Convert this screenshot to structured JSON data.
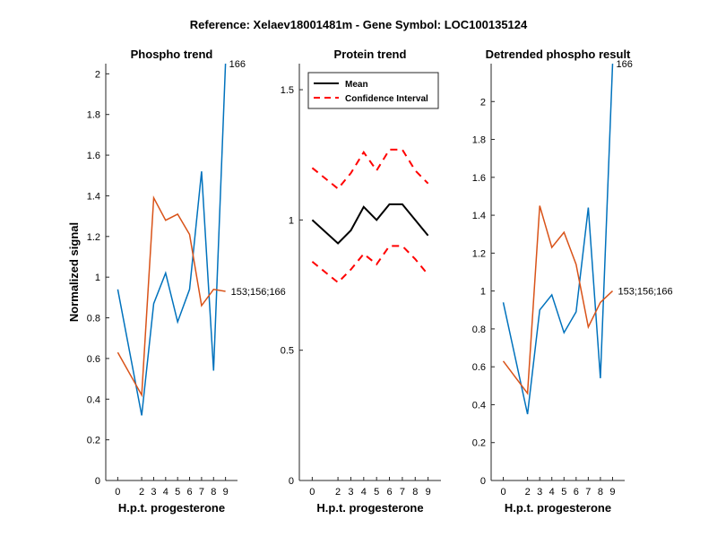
{
  "figure_title": "Reference:  Xelaev18001481m - Gene Symbol:  LOC100135124",
  "colors": {
    "blue": "#0072BD",
    "orange": "#D95319",
    "black": "#000000",
    "red": "#FF0000"
  },
  "chart_data": [
    {
      "type": "line",
      "title": "Phospho trend",
      "xlabel": "H.p.t. progesterone",
      "ylabel": "Normalized signal",
      "x": [
        0,
        2,
        3,
        4,
        5,
        6,
        7,
        8,
        9
      ],
      "xlim": [
        -1,
        10
      ],
      "ylim": [
        0,
        2.05
      ],
      "yticks": [
        0,
        0.2,
        0.4,
        0.6,
        0.8,
        1,
        1.2,
        1.4,
        1.6,
        1.8,
        2
      ],
      "ytick_labels": [
        "0",
        "0.2",
        "0.4",
        "0.6",
        "0.8",
        "1",
        "1.2",
        "1.4",
        "1.6",
        "1.8",
        "2"
      ],
      "xtick_labels": [
        "0",
        "2",
        "3",
        "4",
        "5",
        "6",
        "7",
        "8",
        "9"
      ],
      "series": [
        {
          "name": "166",
          "color": "#0072BD",
          "values": [
            0.94,
            0.32,
            0.87,
            1.02,
            0.78,
            0.94,
            1.52,
            0.54,
            2.05
          ],
          "label_at": 8,
          "label_side": "above"
        },
        {
          "name": "153;156;166",
          "color": "#D95319",
          "values": [
            0.63,
            0.42,
            1.39,
            1.28,
            1.31,
            1.21,
            0.86,
            0.94,
            0.93
          ],
          "label_at": 8,
          "label_side": "right"
        }
      ]
    },
    {
      "type": "line",
      "title": "Protein trend",
      "xlabel": "H.p.t. progesterone",
      "ylabel": "",
      "x": [
        0,
        2,
        3,
        4,
        5,
        6,
        7,
        8,
        9
      ],
      "xlim": [
        -1,
        10
      ],
      "ylim": [
        0,
        1.6
      ],
      "yticks": [
        0,
        0.5,
        1,
        1.5
      ],
      "ytick_labels": [
        "0",
        "0.5",
        "1",
        "1.5"
      ],
      "xtick_labels": [
        "0",
        "2",
        "3",
        "4",
        "5",
        "6",
        "7",
        "8",
        "9"
      ],
      "legend": {
        "location": "top-left",
        "entries": [
          "Mean",
          "Confidence Interval"
        ]
      },
      "series": [
        {
          "name": "Mean",
          "color": "#000000",
          "style": "solid",
          "values": [
            1.0,
            0.91,
            0.96,
            1.05,
            1.0,
            1.06,
            1.06,
            1.0,
            0.94
          ]
        },
        {
          "name": "Confidence Interval",
          "color": "#FF0000",
          "style": "dashed",
          "values": [
            1.2,
            1.12,
            1.18,
            1.26,
            1.19,
            1.27,
            1.27,
            1.19,
            1.14
          ]
        },
        {
          "name": "Confidence Interval (lower)",
          "color": "#FF0000",
          "style": "dashed",
          "values": [
            0.84,
            0.76,
            0.81,
            0.87,
            0.83,
            0.9,
            0.9,
            0.85,
            0.79
          ]
        }
      ]
    },
    {
      "type": "line",
      "title": "Detrended phospho result",
      "xlabel": "H.p.t. progesterone",
      "ylabel": "",
      "x": [
        0,
        2,
        3,
        4,
        5,
        6,
        7,
        8,
        9
      ],
      "xlim": [
        -1,
        10
      ],
      "ylim": [
        0,
        2.2
      ],
      "yticks": [
        0,
        0.2,
        0.4,
        0.6,
        0.8,
        1,
        1.2,
        1.4,
        1.6,
        1.8,
        2
      ],
      "ytick_labels": [
        "0",
        "0.2",
        "0.4",
        "0.6",
        "0.8",
        "1",
        "1.2",
        "1.4",
        "1.6",
        "1.8",
        "2"
      ],
      "xtick_labels": [
        "0",
        "2",
        "3",
        "4",
        "5",
        "6",
        "7",
        "8",
        "9"
      ],
      "series": [
        {
          "name": "166",
          "color": "#0072BD",
          "values": [
            0.94,
            0.35,
            0.9,
            0.98,
            0.78,
            0.89,
            1.44,
            0.54,
            2.2
          ],
          "label_at": 8,
          "label_side": "above"
        },
        {
          "name": "153;156;166",
          "color": "#D95319",
          "values": [
            0.63,
            0.46,
            1.45,
            1.23,
            1.31,
            1.14,
            0.81,
            0.94,
            1.0
          ],
          "label_at": 8,
          "label_side": "right"
        }
      ]
    }
  ]
}
